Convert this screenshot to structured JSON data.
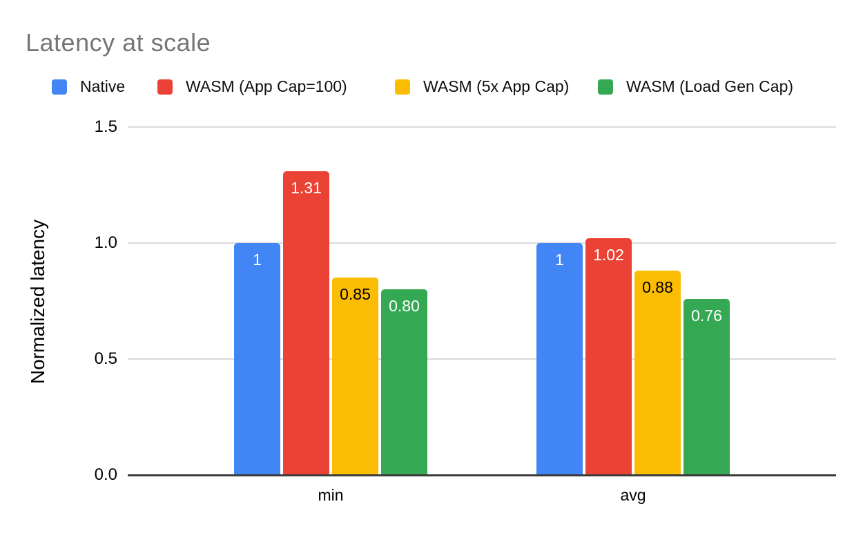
{
  "chart": {
    "title": "Latency at scale",
    "y_axis_title": "Normalized latency"
  },
  "chart_data": {
    "type": "bar",
    "title": "Latency at scale",
    "xlabel": "",
    "ylabel": "Normalized latency",
    "categories": [
      "min",
      "avg"
    ],
    "series": [
      {
        "name": "Native",
        "color": "#4285F4",
        "values": [
          1.0,
          1.0
        ],
        "labels": [
          "1",
          "1"
        ],
        "label_color": "#ffffff"
      },
      {
        "name": "WASM (App Cap=100)",
        "color": "#EA4335",
        "values": [
          1.31,
          1.02
        ],
        "labels": [
          "1.31",
          "1.02"
        ],
        "label_color": "#ffffff"
      },
      {
        "name": "WASM (5x App Cap)",
        "color": "#FBBC04",
        "values": [
          0.85,
          0.88
        ],
        "labels": [
          "0.85",
          "0.88"
        ],
        "label_color": "#000000"
      },
      {
        "name": "WASM (Load Gen Cap)",
        "color": "#34A853",
        "values": [
          0.8,
          0.76
        ],
        "labels": [
          "0.80",
          "0.76"
        ],
        "label_color": "#ffffff"
      }
    ],
    "ylim": [
      0,
      1.5
    ],
    "yticks": [
      "0.0",
      "0.5",
      "1.0",
      "1.5"
    ],
    "grid": true,
    "legend_position": "top"
  }
}
